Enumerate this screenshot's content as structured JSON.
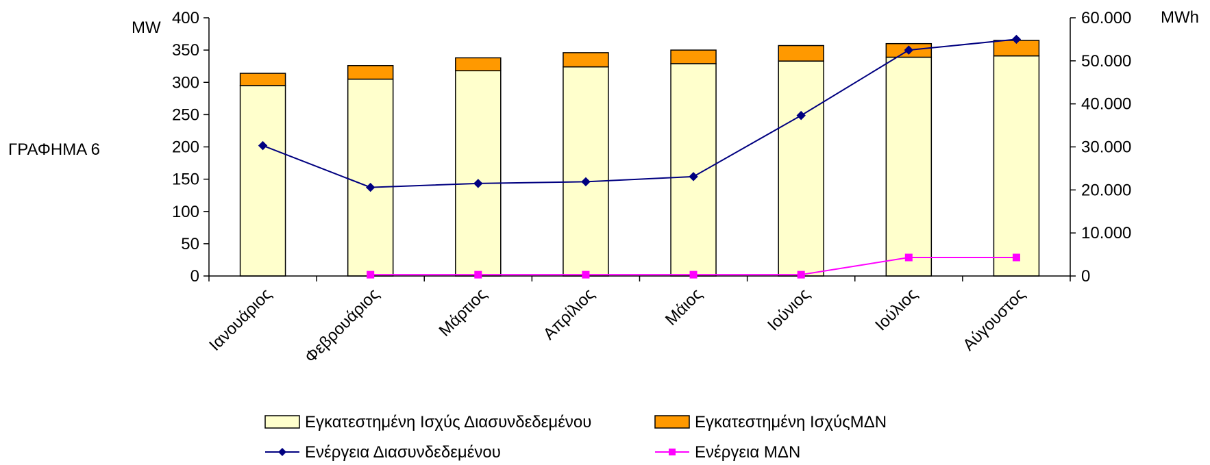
{
  "side_label": "ΓΡΑΦΗΜΑ 6",
  "chart_data": {
    "type": "bar",
    "categories": [
      "Ιανουάριος",
      "Φεβρουάριος",
      "Μάρτιος",
      "Απρίλιος",
      "Μάιος",
      "Ιούνιος",
      "Ιούλιος",
      "Αύγουστος"
    ],
    "y_left": {
      "unit": "MW",
      "min": 0,
      "max": 400,
      "ticks": [
        "0",
        "50",
        "100",
        "150",
        "200",
        "250",
        "300",
        "350",
        "400"
      ]
    },
    "y_right": {
      "unit": "MWh",
      "min": 0,
      "max": 60000,
      "ticks": [
        "0",
        "10.000",
        "20.000",
        "30.000",
        "40.000",
        "50.000",
        "60.000"
      ]
    },
    "grid": false,
    "legend_position": "bottom",
    "bar_series": [
      {
        "name": "Εγκατεστημένη Ισχύς Διασυνδεδεμένου",
        "color": "#ffffcc",
        "values": [
          295,
          305,
          318,
          324,
          329,
          333,
          339,
          341
        ]
      },
      {
        "name": "Εγκατεστημένη ΙσχύςΜΔΝ",
        "color": "#ff9900",
        "values": [
          19,
          21,
          20,
          22,
          21,
          24,
          21,
          24
        ]
      }
    ],
    "line_series": [
      {
        "name": "Ενέργεια Διασυνδεδεμένου",
        "color": "#000080",
        "marker": "diamond",
        "axis": "right",
        "values": [
          30300,
          20600,
          21500,
          21900,
          23100,
          37300,
          52500,
          55000
        ]
      },
      {
        "name": "Ενέργεια ΜΔΝ",
        "color": "#ff00ff",
        "marker": "square",
        "axis": "right",
        "values": [
          null,
          300,
          300,
          300,
          300,
          300,
          4300,
          4300
        ]
      }
    ]
  }
}
